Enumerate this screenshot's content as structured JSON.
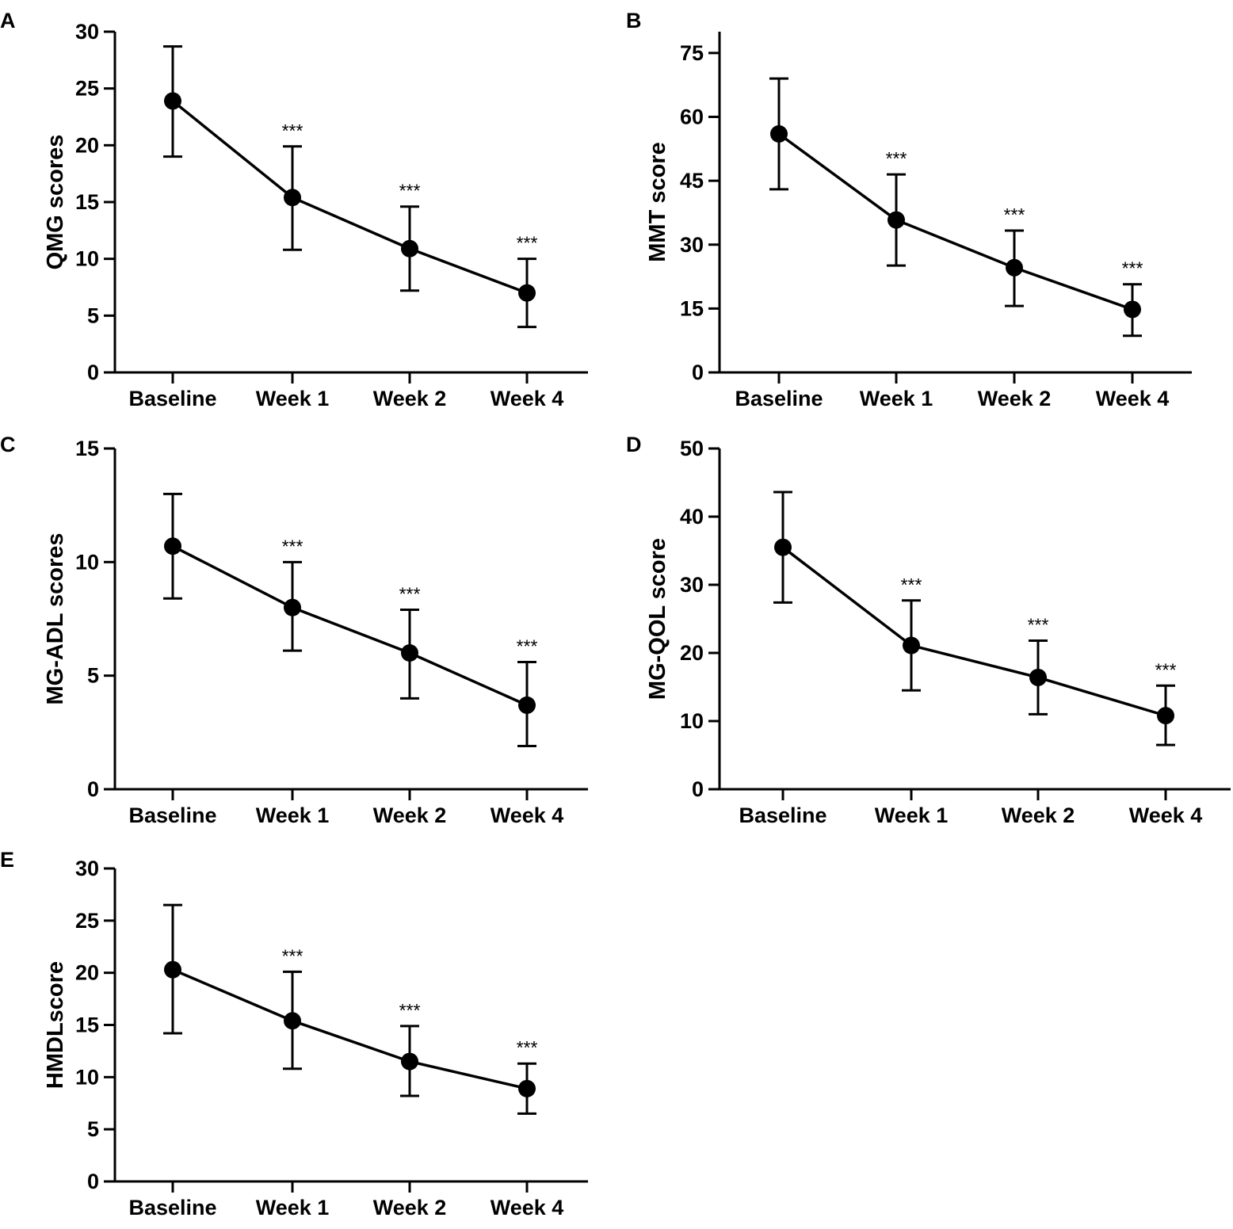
{
  "chart_data": [
    {
      "panel": "A",
      "type": "line",
      "categories": [
        "Baseline",
        "Week 1",
        "Week 2",
        "Week 4"
      ],
      "values": [
        23.9,
        15.4,
        10.9,
        7.0
      ],
      "error_upper": [
        28.7,
        19.9,
        14.6,
        10.0
      ],
      "error_lower": [
        19.0,
        10.8,
        7.2,
        4.0
      ],
      "significance": [
        "",
        "***",
        "***",
        "***"
      ],
      "ylabel": "QMG scores",
      "ylim": [
        0,
        30
      ],
      "yticks": [
        0,
        5,
        10,
        15,
        20,
        25,
        30
      ]
    },
    {
      "panel": "B",
      "type": "line",
      "categories": [
        "Baseline",
        "Week 1",
        "Week 2",
        "Week 4"
      ],
      "values": [
        56,
        35.8,
        24.6,
        14.8
      ],
      "error_upper": [
        69,
        46.5,
        33.3,
        20.7
      ],
      "error_lower": [
        43,
        25.1,
        15.6,
        8.6
      ],
      "significance": [
        "",
        "***",
        "***",
        "***"
      ],
      "ylabel": "MMT score",
      "ylim": [
        0,
        80
      ],
      "yticks": [
        0,
        15,
        30,
        45,
        60,
        75
      ]
    },
    {
      "panel": "C",
      "type": "line",
      "categories": [
        "Baseline",
        "Week 1",
        "Week 2",
        "Week 4"
      ],
      "values": [
        10.7,
        8.0,
        6.0,
        3.7
      ],
      "error_upper": [
        13.0,
        10.0,
        7.9,
        5.6
      ],
      "error_lower": [
        8.4,
        6.1,
        4.0,
        1.9
      ],
      "significance": [
        "",
        "***",
        "***",
        "***"
      ],
      "ylabel": "MG-ADL scores",
      "ylim": [
        0,
        15
      ],
      "yticks": [
        0,
        5,
        10,
        15
      ]
    },
    {
      "panel": "D",
      "type": "line",
      "categories": [
        "Baseline",
        "Week 1",
        "Week 2",
        "Week 4"
      ],
      "values": [
        35.5,
        21.1,
        16.4,
        10.8
      ],
      "error_upper": [
        43.6,
        27.7,
        21.8,
        15.2
      ],
      "error_lower": [
        27.4,
        14.5,
        11.0,
        6.5
      ],
      "significance": [
        "",
        "***",
        "***",
        "***"
      ],
      "ylabel": "MG-QOL score",
      "ylim": [
        0,
        50
      ],
      "yticks": [
        0,
        10,
        20,
        30,
        40,
        50
      ]
    },
    {
      "panel": "E",
      "type": "line",
      "categories": [
        "Baseline",
        "Week 1",
        "Week 2",
        "Week 4"
      ],
      "values": [
        20.3,
        15.4,
        11.5,
        8.9
      ],
      "error_upper": [
        26.5,
        20.1,
        14.9,
        11.3
      ],
      "error_lower": [
        14.2,
        10.8,
        8.2,
        6.5
      ],
      "significance": [
        "",
        "***",
        "***",
        "***"
      ],
      "ylabel": "HMDLscore",
      "ylim": [
        0,
        30
      ],
      "yticks": [
        0,
        5,
        10,
        15,
        20,
        25,
        30
      ]
    }
  ]
}
